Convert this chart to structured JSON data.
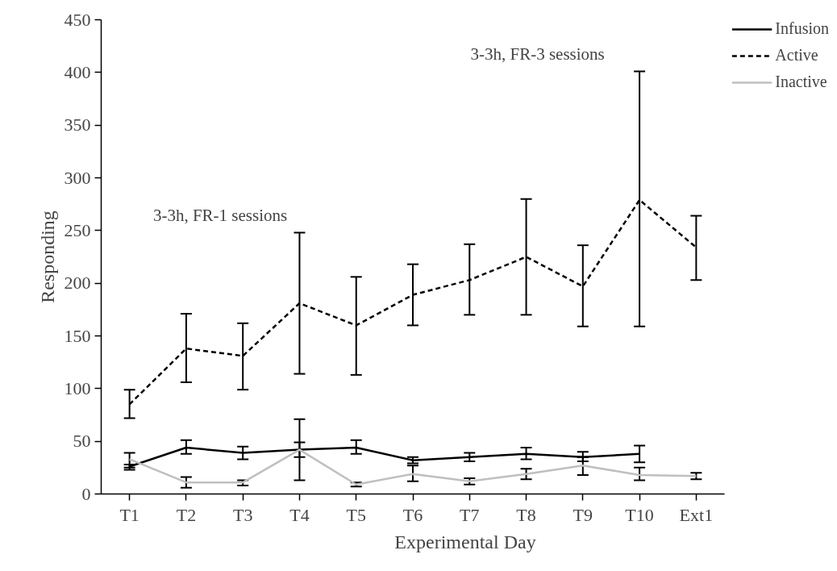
{
  "chart_data": {
    "type": "line",
    "xlabel": "Experimental Day",
    "ylabel": "Responding",
    "categories": [
      "T1",
      "T2",
      "T3",
      "T4",
      "T5",
      "T6",
      "T7",
      "T8",
      "T9",
      "T10",
      "Ext1"
    ],
    "ylim": [
      0,
      450
    ],
    "yticks": [
      0,
      50,
      100,
      150,
      200,
      250,
      300,
      350,
      400,
      450
    ],
    "grid": false,
    "legend": "top right",
    "marker": "none",
    "series": [
      {
        "name": "Infusion",
        "color": "#000000",
        "line_style": "solid",
        "values": [
          26,
          44,
          39,
          42,
          44,
          32,
          35,
          38,
          35,
          38,
          null
        ],
        "errors": [
          [
            23,
            28
          ],
          [
            38,
            51
          ],
          [
            33,
            45
          ],
          [
            35,
            49
          ],
          [
            38,
            51
          ],
          [
            29,
            35
          ],
          [
            31,
            39
          ],
          [
            33,
            44
          ],
          [
            31,
            40
          ],
          [
            30,
            46
          ],
          null
        ]
      },
      {
        "name": "Active",
        "color": "#000000",
        "line_style": "dashed",
        "values": [
          85,
          138,
          131,
          181,
          160,
          189,
          203,
          225,
          197,
          279,
          234
        ],
        "errors": [
          [
            72,
            99
          ],
          [
            106,
            171
          ],
          [
            99,
            162
          ],
          [
            114,
            248
          ],
          [
            113,
            206
          ],
          [
            160,
            218
          ],
          [
            170,
            237
          ],
          [
            170,
            280
          ],
          [
            159,
            236
          ],
          [
            159,
            401
          ],
          [
            203,
            264
          ]
        ]
      },
      {
        "name": "Inactive",
        "color": "#bfbfbf",
        "line_style": "solid",
        "values": [
          33,
          11,
          11,
          42,
          9,
          19,
          12,
          19,
          27,
          18,
          17
        ],
        "errors": [
          [
            25,
            39
          ],
          [
            6,
            16
          ],
          [
            8,
            13
          ],
          [
            13,
            71
          ],
          [
            7,
            11
          ],
          [
            12,
            27
          ],
          [
            9,
            15
          ],
          [
            14,
            24
          ],
          [
            18,
            35
          ],
          [
            13,
            25
          ],
          [
            14,
            20
          ]
        ]
      }
    ],
    "annotations": [
      "3-3h, FR-1 sessions",
      "3-3h, FR-3 sessions"
    ]
  }
}
